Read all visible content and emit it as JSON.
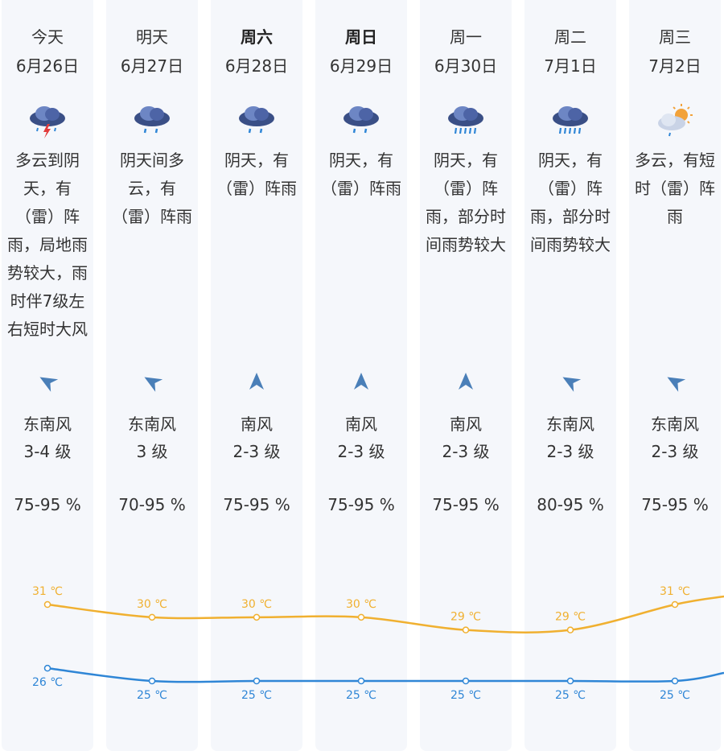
{
  "days": [
    {
      "day": "今天",
      "date": "6月26日",
      "bold": false,
      "icon": "thunder-rain-cloud-icon",
      "desc": "多云到阴天，有（雷）阵雨，局地雨势较大，雨时伴7级左右短时大风",
      "wind_dir": "东南风",
      "wind_level": "3-4 级",
      "humidity": "75-95 %",
      "wind_arrow": "southeast-wind-arrow-icon",
      "high": "31 ℃",
      "low": "26 ℃"
    },
    {
      "day": "明天",
      "date": "6月27日",
      "bold": false,
      "icon": "light-rain-cloud-icon",
      "desc": "阴天间多云，有（雷）阵雨",
      "wind_dir": "东南风",
      "wind_level": "3 级",
      "humidity": "70-95 %",
      "wind_arrow": "southeast-wind-arrow-icon",
      "high": "30 ℃",
      "low": "25 ℃"
    },
    {
      "day": "周六",
      "date": "6月28日",
      "bold": true,
      "icon": "light-rain-cloud-icon",
      "desc": "阴天，有（雷）阵雨",
      "wind_dir": "南风",
      "wind_level": "2-3 级",
      "humidity": "75-95 %",
      "wind_arrow": "south-wind-arrow-icon",
      "high": "30 ℃",
      "low": "25 ℃"
    },
    {
      "day": "周日",
      "date": "6月29日",
      "bold": true,
      "icon": "light-rain-cloud-icon",
      "desc": "阴天，有（雷）阵雨",
      "wind_dir": "南风",
      "wind_level": "2-3 级",
      "humidity": "75-95 %",
      "wind_arrow": "south-wind-arrow-icon",
      "high": "30 ℃",
      "low": "25 ℃"
    },
    {
      "day": "周一",
      "date": "6月30日",
      "bold": false,
      "icon": "heavy-rain-cloud-icon",
      "desc": "阴天，有（雷）阵雨，部分时间雨势较大",
      "wind_dir": "南风",
      "wind_level": "2-3 级",
      "humidity": "75-95 %",
      "wind_arrow": "south-wind-arrow-icon",
      "high": "29 ℃",
      "low": "25 ℃"
    },
    {
      "day": "周二",
      "date": "7月1日",
      "bold": false,
      "icon": "heavy-rain-cloud-icon",
      "desc": "阴天，有（雷）阵雨，部分时间雨势较大",
      "wind_dir": "东南风",
      "wind_level": "2-3 级",
      "humidity": "80-95 %",
      "wind_arrow": "southeast-wind-arrow-icon",
      "high": "29 ℃",
      "low": "25 ℃"
    },
    {
      "day": "周三",
      "date": "7月2日",
      "bold": false,
      "icon": "partly-cloudy-shower-icon",
      "desc": "多云，有短时（雷）阵雨",
      "wind_dir": "东南风",
      "wind_level": "2-3 级",
      "humidity": "75-95 %",
      "wind_arrow": "southeast-wind-arrow-icon",
      "high": "31 ℃",
      "low": "25 ℃"
    }
  ],
  "chart_data": {
    "type": "line",
    "categories": [
      "6月26日",
      "6月27日",
      "6月28日",
      "6月29日",
      "6月30日",
      "7月1日",
      "7月2日"
    ],
    "series": [
      {
        "values": [
          31,
          30,
          30,
          30,
          29,
          29,
          31
        ],
        "color": "#f0b030"
      },
      {
        "values": [
          26,
          25,
          25,
          25,
          25,
          25,
          25
        ],
        "color": "#2f86d6"
      }
    ],
    "unit": "℃"
  },
  "colors": {
    "high": "#f0b030",
    "low": "#2f86d6",
    "column_bg": "#f5f7fb",
    "arrow": "#4a7fb8"
  }
}
